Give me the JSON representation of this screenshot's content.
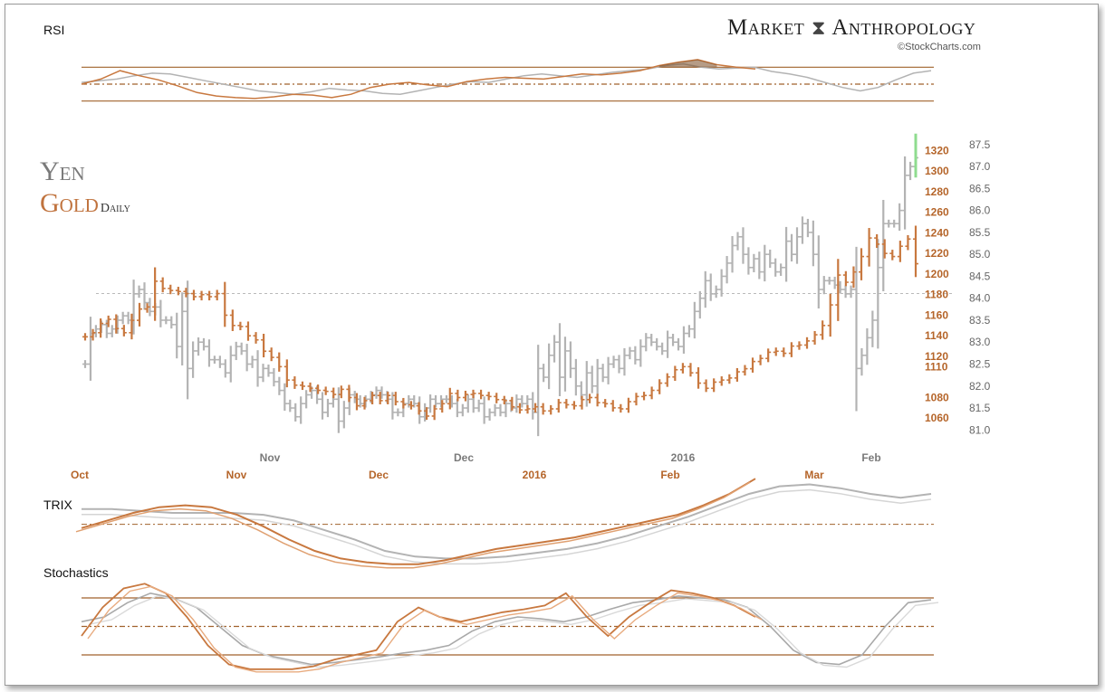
{
  "header": {
    "brand_word1": "Market",
    "brand_word2": "Anthropology",
    "copyright": "©StockCharts.com"
  },
  "main_titles": {
    "series1": "Yen",
    "series2": "Gold",
    "frequency": "Daily"
  },
  "panels": {
    "rsi_label": "RSI",
    "trix_label": "TRIX",
    "stochastics_label": "Stochastics"
  },
  "colors": {
    "yen": "#b3b3b3",
    "gold": "#c8783f",
    "gold_dark": "#7a4a22",
    "reference": "#a0622c",
    "gold_axis": "#b5652a",
    "yen_axis": "#666666",
    "highlight": "#8fdc8f"
  },
  "chart_data": [
    {
      "type": "ohlc",
      "name": "Yen vs Gold Daily",
      "series": [
        {
          "name": "Yen",
          "axis": "right-outer",
          "ylim": [
            80.8,
            87.6
          ],
          "x_ticks": [
            "Nov",
            "Dec",
            "2016",
            "Feb"
          ],
          "y_ticks": [
            "87.5",
            "87.0",
            "86.5",
            "86.0",
            "85.5",
            "85.0",
            "84.5",
            "84.0",
            "83.5",
            "83.0",
            "82.5",
            "82.0",
            "81.5",
            "81.0"
          ],
          "close": [
            82.5,
            83.2,
            83.3,
            83.4,
            83.2,
            83.3,
            83.5,
            83.6,
            83.5,
            84.1,
            84.2,
            83.9,
            83.7,
            83.8,
            83.5,
            83.5,
            83.4,
            82.9,
            83.7,
            82.4,
            82.8,
            83.0,
            82.9,
            82.6,
            82.6,
            82.5,
            82.3,
            82.7,
            82.9,
            82.8,
            82.5,
            82.6,
            82.2,
            82.4,
            82.3,
            82.1,
            81.9,
            81.6,
            81.5,
            81.3,
            81.6,
            81.8,
            81.9,
            81.7,
            81.4,
            81.6,
            81.7,
            81.2,
            81.5,
            81.8,
            81.7,
            81.6,
            81.7,
            81.8,
            81.9,
            81.8,
            81.7,
            81.4,
            81.4,
            81.6,
            81.7,
            81.6,
            81.3,
            81.5,
            81.7,
            81.6,
            81.7,
            81.7,
            81.6,
            81.4,
            81.5,
            81.7,
            81.5,
            81.6,
            81.3,
            81.4,
            81.5,
            81.4,
            81.6,
            81.5,
            81.7,
            81.6,
            81.7,
            81.4,
            82.4,
            82.2,
            82.7,
            83.0,
            82.2,
            82.8,
            82.4,
            82.0,
            81.8,
            82.3,
            82.0,
            82.4,
            82.2,
            82.5,
            82.6,
            82.4,
            82.7,
            82.8,
            82.6,
            82.9,
            83.1,
            83.0,
            82.9,
            82.8,
            83.1,
            83.0,
            82.9,
            83.2,
            83.3,
            83.7,
            84.0,
            84.4,
            84.1,
            84.2,
            84.5,
            84.8,
            85.2,
            85.4,
            85.0,
            84.7,
            84.9,
            84.6,
            85.0,
            84.8,
            84.6,
            84.7,
            85.3,
            85.0,
            85.4,
            85.7,
            85.5,
            85.0,
            84.2,
            84.4,
            84.4,
            84.3,
            84.2,
            84.1,
            84.2,
            82.4,
            82.7,
            83.1,
            83.5,
            84.7,
            85.7,
            85.7,
            85.7,
            86.0,
            86.8,
            87.0,
            87.2
          ]
        },
        {
          "name": "Gold",
          "axis": "right-inner",
          "ylim": [
            1040,
            1330
          ],
          "x_ticks": [
            "Oct",
            "Nov",
            "Dec",
            "2016",
            "Feb",
            "Mar"
          ],
          "y_ticks": [
            "1320",
            "1300",
            "1280",
            "1260",
            "1240",
            "1220",
            "1200",
            "1180",
            "1160",
            "1140",
            "1120",
            "1110",
            "1080",
            "1060"
          ],
          "reference_line": 1181,
          "close": [
            1139,
            1143,
            1152,
            1156,
            1147,
            1143,
            1155,
            1166,
            1168,
            1193,
            1186,
            1184,
            1183,
            1181,
            1178,
            1180,
            1178,
            1181,
            1160,
            1150,
            1149,
            1140,
            1136,
            1125,
            1119,
            1110,
            1097,
            1092,
            1091,
            1089,
            1087,
            1086,
            1083,
            1088,
            1080,
            1072,
            1077,
            1082,
            1077,
            1082,
            1076,
            1073,
            1072,
            1067,
            1062,
            1069,
            1074,
            1084,
            1080,
            1083,
            1084,
            1082,
            1081,
            1078,
            1077,
            1071,
            1068,
            1069,
            1071,
            1067,
            1069,
            1075,
            1073,
            1072,
            1078,
            1080,
            1075,
            1074,
            1070,
            1069,
            1076,
            1081,
            1082,
            1087,
            1094,
            1100,
            1107,
            1110,
            1104,
            1094,
            1089,
            1095,
            1097,
            1099,
            1105,
            1108,
            1115,
            1118,
            1124,
            1125,
            1123,
            1130,
            1131,
            1135,
            1141,
            1150,
            1170,
            1199,
            1192,
            1202,
            1217,
            1235,
            1229,
            1220,
            1217,
            1227,
            1234,
            1210
          ]
        }
      ]
    },
    {
      "type": "line",
      "name": "RSI",
      "ylim": [
        20,
        80
      ],
      "reference_lines": [
        70,
        50,
        30
      ],
      "series": [
        {
          "name": "Yen",
          "values": [
            52,
            54,
            56,
            60,
            63,
            62,
            58,
            54,
            50,
            46,
            42,
            40,
            38,
            41,
            45,
            43,
            42,
            39,
            38,
            42,
            46,
            50,
            53,
            52,
            56,
            60,
            62,
            60,
            58,
            61,
            64,
            66,
            68,
            72,
            74,
            70,
            68,
            69,
            70,
            65,
            62,
            58,
            52,
            46,
            42,
            46,
            55,
            63,
            66
          ]
        },
        {
          "name": "Gold",
          "values": [
            50,
            56,
            66,
            60,
            55,
            48,
            40,
            36,
            34,
            33,
            35,
            38,
            37,
            34,
            38,
            46,
            50,
            52,
            49,
            47,
            53,
            56,
            58,
            57,
            56,
            59,
            62,
            61,
            63,
            66,
            72,
            76,
            79,
            73,
            70,
            68
          ]
        }
      ]
    },
    {
      "type": "line",
      "name": "TRIX",
      "series": [
        {
          "name": "Yen",
          "values": [
            0.08,
            0.08,
            0.07,
            0.06,
            0.06,
            0.06,
            0.05,
            0.02,
            -0.03,
            -0.08,
            -0.14,
            -0.17,
            -0.18,
            -0.18,
            -0.17,
            -0.15,
            -0.13,
            -0.1,
            -0.06,
            -0.01,
            0.04,
            0.1,
            0.16,
            0.2,
            0.21,
            0.19,
            0.16,
            0.14,
            0.16
          ]
        },
        {
          "name": "Gold",
          "values": [
            -0.02,
            0.02,
            0.06,
            0.09,
            0.1,
            0.09,
            0.05,
            -0.01,
            -0.08,
            -0.14,
            -0.18,
            -0.2,
            -0.21,
            -0.21,
            -0.19,
            -0.16,
            -0.13,
            -0.11,
            -0.09,
            -0.07,
            -0.04,
            -0.01,
            0.02,
            0.05,
            0.1,
            0.16,
            0.24
          ]
        }
      ]
    },
    {
      "type": "line",
      "name": "Stochastics",
      "ylim": [
        0,
        100
      ],
      "reference_lines": [
        80,
        50,
        20
      ],
      "series": [
        {
          "name": "Yen",
          "values": [
            55,
            60,
            75,
            85,
            80,
            70,
            50,
            30,
            20,
            15,
            10,
            12,
            15,
            18,
            22,
            25,
            30,
            45,
            55,
            60,
            58,
            55,
            60,
            68,
            75,
            78,
            82,
            80,
            78,
            70,
            50,
            25,
            12,
            10,
            20,
            50,
            75,
            78
          ]
        },
        {
          "name": "Gold",
          "values": [
            40,
            70,
            90,
            95,
            85,
            60,
            30,
            10,
            5,
            5,
            5,
            8,
            15,
            20,
            25,
            55,
            70,
            60,
            55,
            60,
            65,
            68,
            72,
            85,
            60,
            40,
            60,
            75,
            88,
            85,
            80,
            72,
            60
          ]
        }
      ]
    }
  ]
}
